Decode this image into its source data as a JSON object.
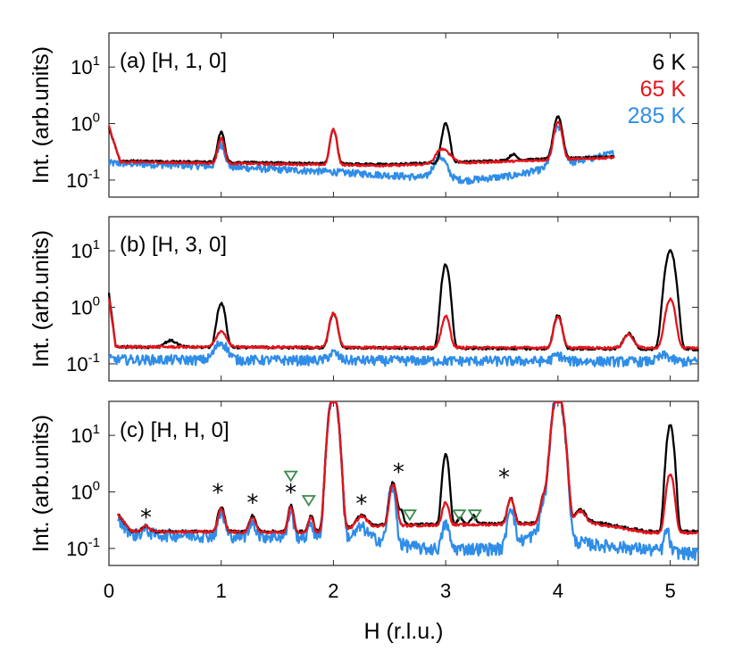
{
  "chart_data": {
    "type": "line",
    "xlabel": "H (r.l.u.)",
    "ylabel": "Int. (arb.units)",
    "xlim": [
      0,
      5.25
    ],
    "ylim": [
      0.05,
      40
    ],
    "yscale": "log",
    "x_ticks": [
      0,
      1,
      2,
      3,
      4,
      5
    ],
    "x_tick_labels": [
      "0",
      "1",
      "2",
      "3",
      "4",
      "5"
    ],
    "y_ticks": [
      10,
      1,
      0.1
    ],
    "y_tick_labels": [
      {
        "base": "10",
        "exp": "1"
      },
      {
        "base": "10",
        "exp": "0"
      },
      {
        "base": "10",
        "exp": "-1"
      }
    ],
    "legend": [
      {
        "name": "6 K",
        "color": "#000000"
      },
      {
        "name": "65 K",
        "color": "#e3141c"
      },
      {
        "name": "285 K",
        "color": "#2f8de8"
      }
    ],
    "panels": [
      {
        "label": "(a)  [H, 1, 0]",
        "xrange": [
          0,
          4.5
        ],
        "series": [
          {
            "name": "6 K",
            "background": [
              [
                0,
                0.85
              ],
              [
                0.1,
                0.22
              ],
              [
                2.5,
                0.19
              ],
              [
                4.5,
                0.26
              ]
            ],
            "peaks": [
              [
                1.0,
                0.5,
                0.025
              ],
              [
                2.0,
                0.58,
                0.025
              ],
              [
                3.0,
                0.8,
                0.028
              ],
              [
                3.6,
                0.06,
                0.03
              ],
              [
                4.0,
                1.1,
                0.03
              ]
            ],
            "noise": 0.04
          },
          {
            "name": "65 K",
            "background": [
              [
                0,
                0.9
              ],
              [
                0.1,
                0.21
              ],
              [
                2.5,
                0.18
              ],
              [
                4.5,
                0.25
              ]
            ],
            "peaks": [
              [
                1.0,
                0.35,
                0.025
              ],
              [
                2.0,
                0.6,
                0.025
              ],
              [
                3.0,
                0.1,
                0.06
              ],
              [
                2.95,
                0.08,
                0.04
              ],
              [
                4.0,
                0.85,
                0.03
              ]
            ],
            "noise": 0.04
          },
          {
            "name": "285 K",
            "background": [
              [
                0,
                0.2
              ],
              [
                0.8,
                0.18
              ],
              [
                2.0,
                0.14
              ],
              [
                3.2,
                0.1
              ],
              [
                3.6,
                0.12
              ],
              [
                4.5,
                0.3
              ]
            ],
            "peaks": [
              [
                1.0,
                0.25,
                0.03
              ],
              [
                2.95,
                0.15,
                0.05
              ],
              [
                4.0,
                0.7,
                0.04
              ]
            ],
            "noise": 0.14
          }
        ]
      },
      {
        "label": "(b)  [H, 3, 0]",
        "xrange": [
          0,
          5.25
        ],
        "series": [
          {
            "name": "6 K",
            "background": [
              [
                0,
                1.8
              ],
              [
                0.06,
                0.2
              ],
              [
                5.25,
                0.18
              ]
            ],
            "peaks": [
              [
                0.55,
                0.06,
                0.05
              ],
              [
                1.0,
                1.0,
                0.03
              ],
              [
                2.0,
                0.6,
                0.03
              ],
              [
                3.0,
                5.5,
                0.028
              ],
              [
                4.0,
                0.55,
                0.03
              ],
              [
                4.63,
                0.16,
                0.04
              ],
              [
                5.0,
                10,
                0.035
              ]
            ],
            "noise": 0.05
          },
          {
            "name": "65 K",
            "background": [
              [
                0,
                1.5
              ],
              [
                0.06,
                0.2
              ],
              [
                5.25,
                0.19
              ]
            ],
            "peaks": [
              [
                1.0,
                0.18,
                0.04
              ],
              [
                2.0,
                0.6,
                0.03
              ],
              [
                3.0,
                0.5,
                0.03
              ],
              [
                4.0,
                0.5,
                0.03
              ],
              [
                4.63,
                0.14,
                0.04
              ],
              [
                5.0,
                1.2,
                0.035
              ]
            ],
            "noise": 0.05
          },
          {
            "name": "285 K",
            "background": [
              [
                0,
                0.12
              ],
              [
                5.25,
                0.11
              ]
            ],
            "peaks": [
              [
                1.0,
                0.12,
                0.05
              ],
              [
                2.0,
                0.04,
                0.04
              ],
              [
                4.0,
                0.03,
                0.04
              ],
              [
                4.95,
                0.03,
                0.05
              ]
            ],
            "noise": 0.2
          }
        ]
      },
      {
        "label": "(c)  [H, H, 0]",
        "xrange": [
          0.08,
          5.25
        ],
        "series": [
          {
            "name": "6 K",
            "background": [
              [
                0.08,
                0.4
              ],
              [
                0.2,
                0.2
              ],
              [
                1.9,
                0.2
              ],
              [
                2.3,
                0.26
              ],
              [
                3.8,
                0.28
              ],
              [
                4.3,
                0.3
              ],
              [
                4.8,
                0.2
              ],
              [
                5.25,
                0.2
              ]
            ],
            "peaks": [
              [
                0.33,
                0.05,
                0.03
              ],
              [
                1.0,
                0.35,
                0.025
              ],
              [
                1.28,
                0.18,
                0.025
              ],
              [
                1.62,
                0.38,
                0.02
              ],
              [
                1.8,
                0.18,
                0.02
              ],
              [
                2.0,
                60,
                0.03
              ],
              [
                2.25,
                0.14,
                0.04
              ],
              [
                2.53,
                1.2,
                0.025
              ],
              [
                2.6,
                0.2,
                0.02
              ],
              [
                3.0,
                4.5,
                0.022
              ],
              [
                3.13,
                0.08,
                0.02
              ],
              [
                3.25,
                0.12,
                0.02
              ],
              [
                3.58,
                0.5,
                0.025
              ],
              [
                3.88,
                0.6,
                0.03
              ],
              [
                4.0,
                60,
                0.035
              ],
              [
                4.2,
                0.2,
                0.04
              ],
              [
                5.0,
                15,
                0.025
              ]
            ],
            "noise": 0.05
          },
          {
            "name": "65 K",
            "background": [
              [
                0.08,
                0.4
              ],
              [
                0.2,
                0.2
              ],
              [
                1.9,
                0.19
              ],
              [
                2.3,
                0.25
              ],
              [
                3.8,
                0.27
              ],
              [
                4.3,
                0.28
              ],
              [
                4.8,
                0.19
              ],
              [
                5.25,
                0.19
              ]
            ],
            "peaks": [
              [
                0.33,
                0.05,
                0.03
              ],
              [
                1.0,
                0.3,
                0.025
              ],
              [
                1.28,
                0.16,
                0.025
              ],
              [
                1.62,
                0.35,
                0.02
              ],
              [
                1.8,
                0.16,
                0.02
              ],
              [
                2.0,
                60,
                0.03
              ],
              [
                2.25,
                0.13,
                0.04
              ],
              [
                2.53,
                1.1,
                0.025
              ],
              [
                3.0,
                0.4,
                0.025
              ],
              [
                3.58,
                0.5,
                0.025
              ],
              [
                3.88,
                0.6,
                0.03
              ],
              [
                4.0,
                60,
                0.035
              ],
              [
                4.2,
                0.18,
                0.04
              ],
              [
                5.0,
                1.9,
                0.028
              ]
            ],
            "noise": 0.05
          },
          {
            "name": "285 K",
            "background": [
              [
                0.08,
                0.35
              ],
              [
                0.2,
                0.18
              ],
              [
                1.9,
                0.16
              ],
              [
                2.3,
                0.16
              ],
              [
                2.8,
                0.1
              ],
              [
                3.5,
                0.1
              ],
              [
                3.8,
                0.18
              ],
              [
                4.3,
                0.12
              ],
              [
                5.25,
                0.08
              ]
            ],
            "peaks": [
              [
                0.33,
                0.04,
                0.03
              ],
              [
                1.0,
                0.25,
                0.025
              ],
              [
                1.28,
                0.14,
                0.025
              ],
              [
                1.62,
                0.3,
                0.02
              ],
              [
                1.8,
                0.12,
                0.02
              ],
              [
                2.0,
                60,
                0.03
              ],
              [
                2.25,
                0.08,
                0.04
              ],
              [
                2.52,
                1.1,
                0.025
              ],
              [
                3.0,
                0.18,
                0.025
              ],
              [
                3.58,
                0.45,
                0.025
              ],
              [
                3.88,
                0.5,
                0.03
              ],
              [
                4.0,
                60,
                0.035
              ],
              [
                4.97,
                0.12,
                0.02
              ]
            ],
            "noise": 0.25
          }
        ],
        "annotations": [
          {
            "type": "asterisk",
            "h": 0.33,
            "value": 0.34
          },
          {
            "type": "asterisk",
            "h": 0.97,
            "value": 0.95
          },
          {
            "type": "asterisk",
            "h": 1.28,
            "value": 0.62
          },
          {
            "type": "asterisk",
            "h": 1.62,
            "value": 0.95
          },
          {
            "type": "asterisk",
            "h": 2.25,
            "value": 0.6
          },
          {
            "type": "asterisk",
            "h": 2.58,
            "value": 2.2
          },
          {
            "type": "asterisk",
            "h": 3.52,
            "value": 1.75
          },
          {
            "type": "triangle",
            "h": 1.62,
            "value": 1.95
          },
          {
            "type": "triangle",
            "h": 1.78,
            "value": 0.72
          },
          {
            "type": "triangle",
            "h": 2.68,
            "value": 0.4
          },
          {
            "type": "triangle",
            "h": 3.12,
            "value": 0.4
          },
          {
            "type": "triangle",
            "h": 3.26,
            "value": 0.4
          }
        ]
      }
    ]
  }
}
